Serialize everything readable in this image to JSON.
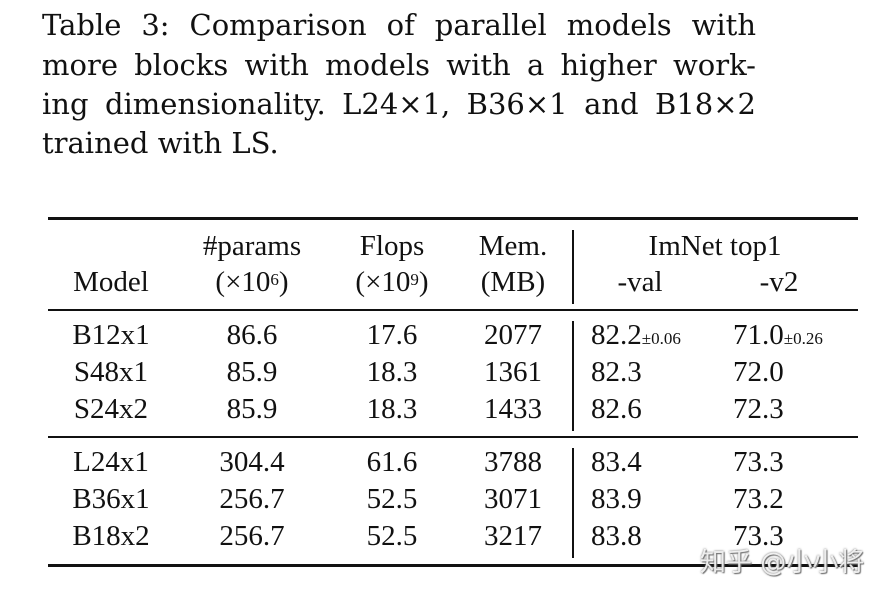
{
  "caption": {
    "lines": [
      "Table 3:  Comparison of parallel models with",
      "more blocks with models with a higher work-",
      "ing dimensionality.  L24×1, B36×1 and B18×2",
      "trained with LS."
    ]
  },
  "table": {
    "headers": {
      "model": "Model",
      "params": "#params",
      "params_unit_pre": "(×10",
      "params_exp": "6",
      "params_unit_post": ")",
      "flops": "Flops",
      "flops_unit_pre": "(×10",
      "flops_exp": "9",
      "flops_unit_post": ")",
      "mem": "Mem.",
      "mem_unit": "(MB)",
      "imnet": "ImNet top1",
      "val": "-val",
      "v2": "-v2"
    },
    "groups": [
      [
        {
          "model": "B12x1",
          "params": "86.6",
          "flops": "17.6",
          "mem": "2077",
          "val": "82.2",
          "val_pm": "±0.06",
          "v2": "71.0",
          "v2_pm": "±0.26"
        },
        {
          "model": "S48x1",
          "params": "85.9",
          "flops": "18.3",
          "mem": "1361",
          "val": "82.3",
          "val_pm": "",
          "v2": "72.0",
          "v2_pm": ""
        },
        {
          "model": "S24x2",
          "params": "85.9",
          "flops": "18.3",
          "mem": "1433",
          "val": "82.6",
          "val_pm": "",
          "v2": "72.3",
          "v2_pm": ""
        }
      ],
      [
        {
          "model": "L24x1",
          "params": "304.4",
          "flops": "61.6",
          "mem": "3788",
          "val": "83.4",
          "val_pm": "",
          "v2": "73.3",
          "v2_pm": ""
        },
        {
          "model": "B36x1",
          "params": "256.7",
          "flops": "52.5",
          "mem": "3071",
          "val": "83.9",
          "val_pm": "",
          "v2": "73.2",
          "v2_pm": ""
        },
        {
          "model": "B18x2",
          "params": "256.7",
          "flops": "52.5",
          "mem": "3217",
          "val": "83.8",
          "val_pm": "",
          "v2": "73.3",
          "v2_pm": ""
        }
      ]
    ]
  },
  "watermark": "知乎 @小小将"
}
